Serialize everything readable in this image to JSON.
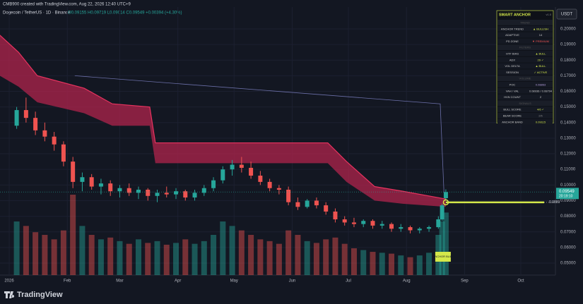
{
  "chart_data": {
    "type": "candlestick",
    "watermark": "CMB900 created with TradingView.com, Aug 22, 2026 12:40 UTC+9",
    "title": "Dogecoin / TetherUS · 1D · Binance",
    "ohlc_text": "O0.09155 H0.09719 L0.09014 C0.09549 +0.00394 (+4.30%)",
    "currency": "USDT",
    "brand": "TradingView",
    "x": [
      4,
      9,
      14,
      19,
      24,
      29,
      34,
      39,
      44,
      49,
      54,
      59,
      64,
      69,
      74,
      79,
      84,
      89,
      94,
      99,
      104,
      109,
      114,
      119,
      124,
      129,
      134,
      139,
      144,
      149,
      154,
      159,
      164,
      169,
      174,
      179,
      184,
      189,
      194,
      199,
      204,
      209,
      214,
      219,
      224,
      229,
      231,
      233
    ],
    "ohlc": [
      [
        0.138,
        0.15,
        0.136,
        0.148
      ],
      [
        0.148,
        0.156,
        0.14,
        0.143
      ],
      [
        0.143,
        0.147,
        0.132,
        0.135
      ],
      [
        0.135,
        0.14,
        0.128,
        0.131
      ],
      [
        0.131,
        0.134,
        0.122,
        0.126
      ],
      [
        0.126,
        0.128,
        0.112,
        0.115
      ],
      [
        0.115,
        0.118,
        0.098,
        0.102
      ],
      [
        0.102,
        0.108,
        0.096,
        0.105
      ],
      [
        0.105,
        0.107,
        0.097,
        0.099
      ],
      [
        0.099,
        0.104,
        0.094,
        0.101
      ],
      [
        0.101,
        0.103,
        0.093,
        0.096
      ],
      [
        0.096,
        0.1,
        0.092,
        0.098
      ],
      [
        0.098,
        0.101,
        0.093,
        0.095
      ],
      [
        0.095,
        0.099,
        0.091,
        0.097
      ],
      [
        0.097,
        0.098,
        0.09,
        0.093
      ],
      [
        0.093,
        0.097,
        0.089,
        0.095
      ],
      [
        0.095,
        0.099,
        0.092,
        0.094
      ],
      [
        0.094,
        0.098,
        0.091,
        0.096
      ],
      [
        0.096,
        0.097,
        0.09,
        0.092
      ],
      [
        0.092,
        0.097,
        0.09,
        0.095
      ],
      [
        0.095,
        0.1,
        0.093,
        0.098
      ],
      [
        0.098,
        0.105,
        0.096,
        0.103
      ],
      [
        0.103,
        0.112,
        0.101,
        0.11
      ],
      [
        0.11,
        0.116,
        0.106,
        0.113
      ],
      [
        0.113,
        0.118,
        0.108,
        0.111
      ],
      [
        0.111,
        0.115,
        0.104,
        0.106
      ],
      [
        0.106,
        0.109,
        0.1,
        0.102
      ],
      [
        0.102,
        0.104,
        0.096,
        0.098
      ],
      [
        0.098,
        0.1,
        0.094,
        0.097
      ],
      [
        0.097,
        0.099,
        0.087,
        0.089
      ],
      [
        0.089,
        0.092,
        0.084,
        0.086
      ],
      [
        0.086,
        0.091,
        0.085,
        0.09
      ],
      [
        0.09,
        0.092,
        0.085,
        0.087
      ],
      [
        0.087,
        0.089,
        0.081,
        0.083
      ],
      [
        0.083,
        0.085,
        0.076,
        0.078
      ],
      [
        0.078,
        0.08,
        0.074,
        0.076
      ],
      [
        0.076,
        0.079,
        0.073,
        0.075
      ],
      [
        0.075,
        0.078,
        0.073,
        0.077
      ],
      [
        0.077,
        0.078,
        0.072,
        0.074
      ],
      [
        0.074,
        0.077,
        0.072,
        0.075
      ],
      [
        0.075,
        0.076,
        0.07,
        0.072
      ],
      [
        0.072,
        0.075,
        0.07,
        0.073
      ],
      [
        0.073,
        0.074,
        0.069,
        0.071
      ],
      [
        0.071,
        0.073,
        0.069,
        0.072
      ],
      [
        0.072,
        0.074,
        0.07,
        0.073
      ],
      [
        0.073,
        0.08,
        0.072,
        0.078
      ],
      [
        0.078,
        0.088,
        0.077,
        0.087
      ],
      [
        0.09155,
        0.09719,
        0.09014,
        0.09549
      ]
    ],
    "volume": [
      60,
      55,
      48,
      45,
      40,
      50,
      90,
      55,
      45,
      40,
      42,
      38,
      35,
      40,
      36,
      38,
      34,
      36,
      40,
      35,
      38,
      45,
      60,
      55,
      50,
      45,
      40,
      38,
      35,
      50,
      45,
      38,
      36,
      40,
      42,
      35,
      30,
      28,
      26,
      25,
      24,
      22,
      20,
      22,
      25,
      45,
      60,
      70
    ],
    "vlim": [
      0,
      300
    ],
    "up_color": "#26a69a",
    "down_color": "#ef5350",
    "band": {
      "x": [
        -5,
        5,
        15,
        40,
        55,
        75,
        78,
        170,
        180,
        195,
        210,
        233
      ],
      "upper": [
        0.196,
        0.185,
        0.17,
        0.162,
        0.152,
        0.15,
        0.127,
        0.127,
        0.115,
        0.099,
        0.096,
        0.091
      ],
      "lower": [
        0.17,
        0.163,
        0.153,
        0.146,
        0.138,
        0.138,
        0.114,
        0.114,
        0.102,
        0.09,
        0.088,
        0.086
      ],
      "color": "#b0244c"
    },
    "anchor_line": {
      "x": [
        35,
        230,
        232
      ],
      "values": [
        0.17,
        0.152,
        0.095
      ],
      "color": "#6b6fa8"
    },
    "level": 0.0889,
    "level_color": "#d4e84a",
    "signal_label": "ANCHOR BULL",
    "countdown": "20:19:10",
    "xlim": [
      -4.9,
      291.1
    ],
    "ylim": [
      0.0423,
      0.214
    ],
    "xticks": [
      {
        "value": 0,
        "label": "2026"
      },
      {
        "value": 31,
        "label": "Feb"
      },
      {
        "value": 59,
        "label": "Mar"
      },
      {
        "value": 90,
        "label": "Apr"
      },
      {
        "value": 120,
        "label": "May"
      },
      {
        "value": 151,
        "label": "Jun"
      },
      {
        "value": 181,
        "label": "Jul"
      },
      {
        "value": 212,
        "label": "Aug"
      },
      {
        "value": 243,
        "label": "Sep"
      },
      {
        "value": 273,
        "label": "Oct"
      }
    ],
    "yticks": [
      {
        "value": 0.2,
        "label": "0.20000"
      },
      {
        "value": 0.19,
        "label": "0.19000"
      },
      {
        "value": 0.18,
        "label": "0.18000"
      },
      {
        "value": 0.17,
        "label": "0.17000"
      },
      {
        "value": 0.16,
        "label": "0.16000"
      },
      {
        "value": 0.15,
        "label": "0.15000"
      },
      {
        "value": 0.14,
        "label": "0.14000"
      },
      {
        "value": 0.13,
        "label": "0.13000"
      },
      {
        "value": 0.12,
        "label": "0.12000"
      },
      {
        "value": 0.11,
        "label": "0.11000"
      },
      {
        "value": 0.1,
        "label": "0.10000"
      },
      {
        "value": 0.09,
        "label": "0.09000"
      },
      {
        "value": 0.08,
        "label": "0.08000"
      },
      {
        "value": 0.07,
        "label": "0.07000"
      },
      {
        "value": 0.06,
        "label": "0.06000"
      },
      {
        "value": 0.05,
        "label": "0.05000"
      }
    ],
    "panel": {
      "title": "SMART ANCHOR",
      "version": "v1.0",
      "rows": [
        {
          "section": "TREND"
        },
        {
          "label": "ANCHOR TREND",
          "value": "▲ BULLISH",
          "color": "#d4e84a"
        },
        {
          "label": "ADAPTIVE",
          "value": "14",
          "color": "#cccccc"
        },
        {
          "label": "PD ZONE",
          "value": "▼ PREMIUM",
          "color": "#ef5350"
        },
        {
          "section": "FILTERS"
        },
        {
          "label": "HTF BIAS",
          "value": "▲ BULL",
          "color": "#d4e84a"
        },
        {
          "label": "ADX",
          "value": "29 ✓",
          "color": "#d4e84a"
        },
        {
          "label": "VOL DELTA",
          "value": "▲ BULL",
          "color": "#d4e84a"
        },
        {
          "label": "SESSION",
          "value": "✓ ACTIVE",
          "color": "#d4e84a"
        },
        {
          "section": "VOLUME"
        },
        {
          "label": "POC",
          "value": "0.08863",
          "color": "#b39ddb"
        },
        {
          "label": "VAH / VAL",
          "value": "0.08936 / 0.08794",
          "color": "#cccccc"
        },
        {
          "label": "HVN COUNT",
          "value": "2",
          "color": "#cccccc"
        },
        {
          "section": "SIGNALS"
        },
        {
          "label": "BULL SCORE",
          "value": "4/6 ✓",
          "color": "#d4e84a"
        },
        {
          "label": "BEAR SCORE",
          "value": "2/6",
          "color": "#888888"
        },
        {
          "label": "ANCHOR BAND",
          "value": "0.09115",
          "color": "#d4e84a"
        }
      ]
    }
  }
}
